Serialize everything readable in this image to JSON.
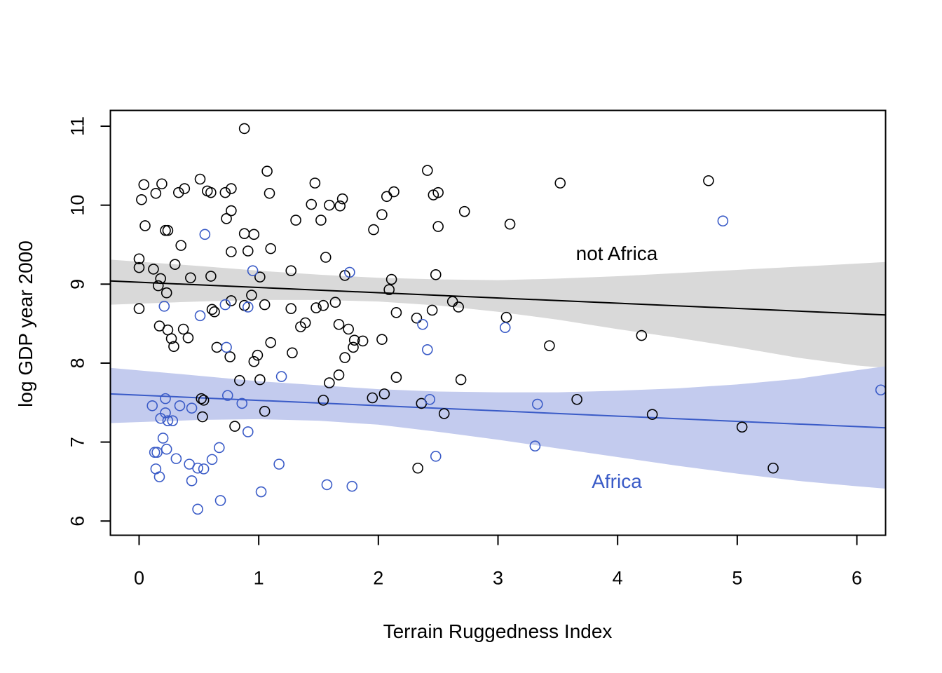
{
  "chart_data": {
    "type": "scatter",
    "title": "",
    "xlabel": "Terrain Ruggedness Index",
    "ylabel": "log GDP year 2000",
    "xlim": [
      -0.24,
      6.24
    ],
    "ylim": [
      5.82,
      11.2
    ],
    "x_ticks": [
      "0",
      "1",
      "2",
      "3",
      "4",
      "5",
      "6"
    ],
    "y_ticks": [
      "6",
      "7",
      "8",
      "9",
      "10",
      "11"
    ],
    "grid": false,
    "legend": "none",
    "annotations": [
      {
        "text": "not Africa",
        "color": "#000000"
      },
      {
        "text": "Africa",
        "color": "#3a5bc7"
      }
    ],
    "series": [
      {
        "key": "not_africa",
        "color": "#000000",
        "band_color": "#d9d9d9",
        "regression": {
          "x": [
            -0.24,
            6.24
          ],
          "y": [
            9.04,
            8.61
          ]
        },
        "band": {
          "x": [
            -0.24,
            0.5,
            1.0,
            1.5,
            2.0,
            2.5,
            3.0,
            3.5,
            4.0,
            4.5,
            5.0,
            5.5,
            6.0,
            6.24
          ],
          "lower": [
            8.74,
            8.78,
            8.8,
            8.8,
            8.78,
            8.73,
            8.65,
            8.55,
            8.43,
            8.32,
            8.2,
            8.07,
            7.97,
            7.94
          ],
          "upper": [
            9.31,
            9.23,
            9.17,
            9.12,
            9.08,
            9.06,
            9.05,
            9.07,
            9.1,
            9.14,
            9.18,
            9.22,
            9.26,
            9.28
          ]
        },
        "points": [
          [
            0.0,
            9.32
          ],
          [
            0.0,
            9.21
          ],
          [
            0.0,
            8.69
          ],
          [
            0.02,
            10.07
          ],
          [
            0.04,
            10.26
          ],
          [
            0.05,
            9.74
          ],
          [
            0.12,
            9.19
          ],
          [
            0.14,
            10.15
          ],
          [
            0.16,
            8.98
          ],
          [
            0.17,
            8.47
          ],
          [
            0.18,
            9.07
          ],
          [
            0.19,
            10.27
          ],
          [
            0.22,
            9.68
          ],
          [
            0.23,
            8.89
          ],
          [
            0.24,
            9.68
          ],
          [
            0.24,
            8.42
          ],
          [
            0.27,
            8.31
          ],
          [
            0.29,
            8.21
          ],
          [
            0.3,
            9.25
          ],
          [
            0.33,
            10.16
          ],
          [
            0.35,
            9.49
          ],
          [
            0.38,
            10.21
          ],
          [
            0.37,
            8.43
          ],
          [
            0.41,
            8.32
          ],
          [
            0.43,
            9.08
          ],
          [
            0.51,
            10.33
          ],
          [
            0.52,
            7.55
          ],
          [
            0.54,
            7.53
          ],
          [
            0.53,
            7.32
          ],
          [
            0.57,
            10.18
          ],
          [
            0.6,
            10.16
          ],
          [
            0.6,
            9.1
          ],
          [
            0.61,
            8.68
          ],
          [
            0.63,
            8.65
          ],
          [
            0.65,
            8.2
          ],
          [
            0.72,
            10.16
          ],
          [
            0.73,
            9.83
          ],
          [
            0.76,
            8.08
          ],
          [
            0.77,
            10.21
          ],
          [
            0.77,
            9.93
          ],
          [
            0.77,
            9.41
          ],
          [
            0.77,
            8.79
          ],
          [
            0.8,
            7.2
          ],
          [
            0.84,
            7.78
          ],
          [
            0.88,
            10.97
          ],
          [
            0.88,
            9.64
          ],
          [
            0.88,
            8.73
          ],
          [
            0.91,
            9.42
          ],
          [
            0.94,
            8.86
          ],
          [
            0.96,
            9.63
          ],
          [
            0.96,
            8.02
          ],
          [
            0.99,
            8.1
          ],
          [
            1.01,
            9.09
          ],
          [
            1.01,
            7.79
          ],
          [
            1.05,
            8.74
          ],
          [
            1.05,
            7.39
          ],
          [
            1.07,
            10.43
          ],
          [
            1.09,
            10.15
          ],
          [
            1.1,
            9.45
          ],
          [
            1.1,
            8.26
          ],
          [
            1.27,
            9.17
          ],
          [
            1.27,
            8.69
          ],
          [
            1.28,
            8.13
          ],
          [
            1.31,
            9.81
          ],
          [
            1.35,
            8.46
          ],
          [
            1.39,
            8.51
          ],
          [
            1.44,
            10.01
          ],
          [
            1.47,
            10.28
          ],
          [
            1.48,
            8.7
          ],
          [
            1.52,
            9.81
          ],
          [
            1.54,
            8.73
          ],
          [
            1.54,
            7.53
          ],
          [
            1.56,
            9.34
          ],
          [
            1.59,
            10.0
          ],
          [
            1.59,
            7.75
          ],
          [
            1.64,
            8.77
          ],
          [
            1.67,
            8.49
          ],
          [
            1.67,
            7.85
          ],
          [
            1.68,
            9.99
          ],
          [
            1.7,
            10.08
          ],
          [
            1.72,
            9.11
          ],
          [
            1.72,
            8.07
          ],
          [
            1.75,
            8.43
          ],
          [
            1.79,
            8.2
          ],
          [
            1.8,
            8.29
          ],
          [
            1.87,
            8.28
          ],
          [
            1.95,
            7.56
          ],
          [
            1.96,
            9.69
          ],
          [
            2.03,
            9.88
          ],
          [
            2.03,
            8.3
          ],
          [
            2.05,
            7.61
          ],
          [
            2.07,
            10.11
          ],
          [
            2.09,
            8.93
          ],
          [
            2.11,
            9.06
          ],
          [
            2.13,
            10.17
          ],
          [
            2.15,
            8.64
          ],
          [
            2.15,
            7.82
          ],
          [
            2.32,
            8.57
          ],
          [
            2.33,
            6.67
          ],
          [
            2.36,
            7.49
          ],
          [
            2.41,
            10.44
          ],
          [
            2.45,
            8.67
          ],
          [
            2.46,
            10.13
          ],
          [
            2.48,
            9.12
          ],
          [
            2.5,
            10.16
          ],
          [
            2.5,
            9.73
          ],
          [
            2.55,
            7.36
          ],
          [
            2.62,
            8.78
          ],
          [
            2.67,
            8.71
          ],
          [
            2.69,
            7.79
          ],
          [
            2.72,
            9.92
          ],
          [
            3.07,
            8.58
          ],
          [
            3.1,
            9.76
          ],
          [
            3.43,
            8.22
          ],
          [
            3.52,
            10.28
          ],
          [
            3.66,
            7.54
          ],
          [
            4.2,
            8.35
          ],
          [
            4.29,
            7.35
          ],
          [
            4.76,
            10.31
          ],
          [
            5.04,
            7.19
          ],
          [
            5.3,
            6.67
          ]
        ]
      },
      {
        "key": "africa",
        "color": "#3a5bc7",
        "band_color": "#c3cbee",
        "regression": {
          "x": [
            -0.24,
            6.24
          ],
          "y": [
            7.61,
            7.18
          ]
        },
        "band": {
          "x": [
            -0.24,
            0.5,
            1.0,
            1.5,
            2.0,
            2.5,
            3.0,
            3.5,
            4.0,
            4.5,
            5.0,
            5.5,
            6.0,
            6.24
          ],
          "lower": [
            7.24,
            7.28,
            7.29,
            7.27,
            7.22,
            7.13,
            7.03,
            6.92,
            6.81,
            6.7,
            6.6,
            6.51,
            6.44,
            6.41
          ],
          "upper": [
            7.94,
            7.84,
            7.77,
            7.72,
            7.67,
            7.64,
            7.63,
            7.63,
            7.65,
            7.68,
            7.73,
            7.8,
            7.91,
            7.96
          ]
        },
        "points": [
          [
            0.11,
            7.46
          ],
          [
            0.13,
            6.87
          ],
          [
            0.14,
            6.66
          ],
          [
            0.15,
            6.87
          ],
          [
            0.17,
            6.56
          ],
          [
            0.18,
            7.3
          ],
          [
            0.2,
            7.05
          ],
          [
            0.21,
            8.72
          ],
          [
            0.22,
            7.55
          ],
          [
            0.22,
            7.37
          ],
          [
            0.23,
            6.91
          ],
          [
            0.24,
            7.27
          ],
          [
            0.28,
            7.27
          ],
          [
            0.31,
            6.79
          ],
          [
            0.34,
            7.46
          ],
          [
            0.42,
            6.72
          ],
          [
            0.44,
            7.43
          ],
          [
            0.44,
            6.51
          ],
          [
            0.49,
            6.67
          ],
          [
            0.49,
            6.15
          ],
          [
            0.51,
            8.6
          ],
          [
            0.54,
            6.66
          ],
          [
            0.55,
            9.63
          ],
          [
            0.61,
            6.78
          ],
          [
            0.67,
            6.93
          ],
          [
            0.68,
            6.26
          ],
          [
            0.72,
            8.74
          ],
          [
            0.73,
            8.2
          ],
          [
            0.74,
            7.59
          ],
          [
            0.86,
            7.49
          ],
          [
            0.91,
            8.71
          ],
          [
            0.91,
            7.13
          ],
          [
            0.95,
            9.17
          ],
          [
            1.02,
            6.37
          ],
          [
            1.17,
            6.72
          ],
          [
            1.19,
            7.83
          ],
          [
            1.57,
            6.46
          ],
          [
            1.76,
            9.15
          ],
          [
            1.78,
            6.44
          ],
          [
            2.37,
            8.49
          ],
          [
            2.41,
            8.17
          ],
          [
            2.43,
            7.54
          ],
          [
            2.48,
            6.82
          ],
          [
            3.06,
            8.45
          ],
          [
            3.31,
            6.95
          ],
          [
            3.33,
            7.48
          ],
          [
            4.88,
            9.8
          ],
          [
            6.2,
            7.66
          ]
        ]
      }
    ]
  }
}
